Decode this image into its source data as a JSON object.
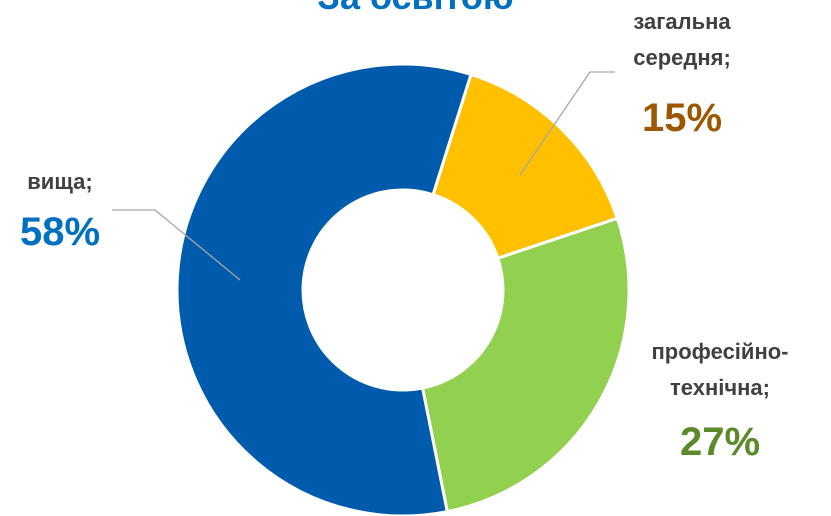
{
  "chart_data": {
    "type": "donut",
    "title": "За освітою",
    "categories": [
      "загальна середня;",
      "професійно-технічна;",
      "вища;"
    ],
    "values": [
      15,
      27,
      58
    ],
    "value_labels": [
      "15%",
      "27%",
      "58%"
    ],
    "colors": [
      "#ffc000",
      "#92d050",
      "#005bac"
    ],
    "label_colors": [
      "#9c5700",
      "#5a8a2a",
      "#0070c0"
    ]
  }
}
